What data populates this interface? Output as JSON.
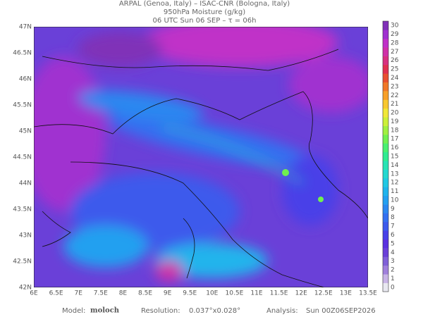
{
  "header": {
    "lines": [
      "ARPAL (Genoa, Italy)  –  ISAC-CNR (Bologna, Italy)",
      "950hPa Moisture (g/kg)",
      "06 UTC Sun 06 SEP  –  τ = 06h"
    ]
  },
  "map": {
    "x_labels": [
      "6E",
      "6.5E",
      "7E",
      "7.5E",
      "8E",
      "8.5E",
      "9E",
      "9.5E",
      "10E",
      "10.5E",
      "11E",
      "11.5E",
      "12E",
      "12.5E",
      "13E",
      "13.5E"
    ],
    "y_labels": [
      "47N",
      "46.5N",
      "46N",
      "45.5N",
      "45N",
      "44.5N",
      "44N",
      "43.5N",
      "43N",
      "42.5N",
      "42N"
    ]
  },
  "colorbar": {
    "ticks": [
      0,
      1,
      2,
      3,
      4,
      5,
      6,
      7,
      8,
      9,
      10,
      11,
      12,
      13,
      14,
      15,
      16,
      17,
      18,
      19,
      20,
      21,
      22,
      23,
      24,
      25,
      26,
      27,
      28,
      29,
      30
    ],
    "colors": [
      "#e8e8f0",
      "#c8b4e6",
      "#a080dc",
      "#8060d8",
      "#6a40d8",
      "#5a30e0",
      "#4840e8",
      "#3c5aec",
      "#3470f0",
      "#2c88f0",
      "#24a0f0",
      "#20b4ec",
      "#20c8e4",
      "#22d8d0",
      "#28e4b4",
      "#30ec90",
      "#48f070",
      "#70f050",
      "#a0f040",
      "#ccf038",
      "#f0e838",
      "#f8c830",
      "#f8a028",
      "#f07828",
      "#e85030",
      "#e03050",
      "#d83080",
      "#d030a8",
      "#c030c8",
      "#a030d0",
      "#8030b8"
    ]
  },
  "footer": {
    "model_label": "Model:",
    "model": "moloch",
    "resolution_label": "Resolution:",
    "resolution": "0.037°x0.028°",
    "analysis_label": "Analysis:",
    "analysis": "Sun 00Z06SEP2026"
  }
}
